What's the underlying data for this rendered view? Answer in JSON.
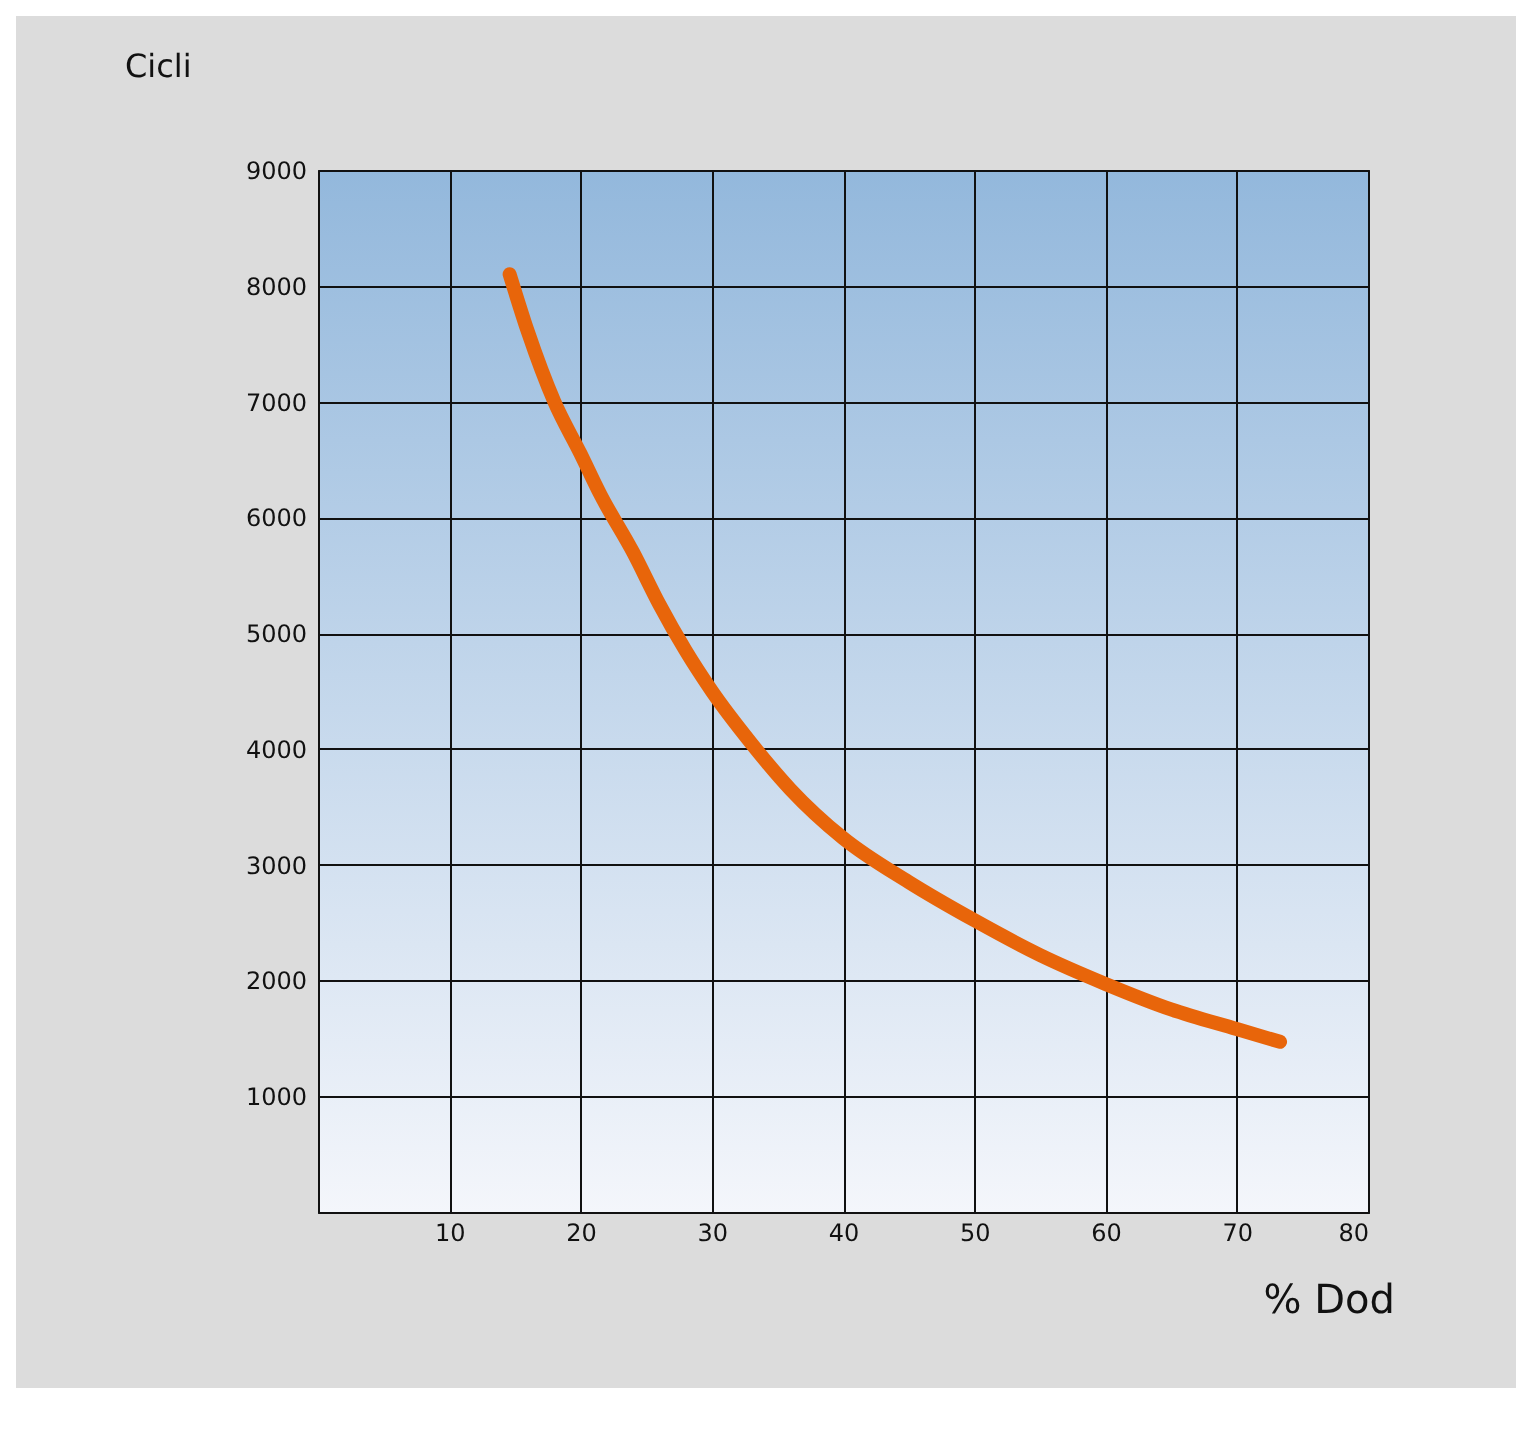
{
  "chart_data": {
    "type": "line",
    "xlabel": "% Dod",
    "ylabel": "Cicli",
    "x": [
      14.6,
      16,
      18,
      20,
      21.5,
      24,
      26,
      28,
      30,
      33,
      36,
      40,
      45,
      50,
      55,
      60,
      65,
      70,
      73.3
    ],
    "series": [
      {
        "color": "#e8650a",
        "values": [
          8100,
          7600,
          7000,
          6550,
          6200,
          5700,
          5250,
          4850,
          4500,
          4050,
          3650,
          3230,
          2850,
          2520,
          2220,
          1970,
          1750,
          1580,
          1470
        ]
      }
    ],
    "xlim": [
      0,
      80
    ],
    "xticks": [
      10,
      20,
      30,
      40,
      50,
      60,
      70,
      80
    ],
    "ylim": [
      0,
      9000
    ],
    "yticks": [
      1000,
      2000,
      3000,
      4000,
      5000,
      6000,
      7000,
      8000,
      9000
    ],
    "grid": true,
    "line_style": "solid",
    "legend": false
  }
}
